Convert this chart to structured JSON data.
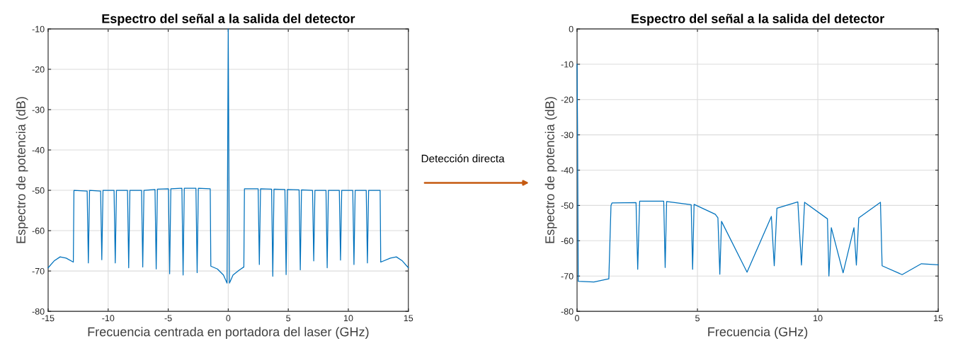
{
  "chart_data": [
    {
      "type": "line",
      "title": "Espectro del señal a la salida del detector",
      "xlabel": "Frecuencia centrada en portadora del laser (GHz)",
      "ylabel": "Espectro de potencia (dB)",
      "xlim": [
        -15,
        15
      ],
      "ylim": [
        -80,
        -10
      ],
      "xticks": [
        -15,
        -10,
        -5,
        0,
        5,
        10,
        15
      ],
      "yticks": [
        -80,
        -70,
        -60,
        -50,
        -40,
        -30,
        -20,
        -10
      ],
      "grid": true,
      "annotations": [
        "Detección directa"
      ],
      "series": [
        {
          "color": "#0072bd",
          "x": [
            -15,
            -14.5,
            -14,
            -13.5,
            -12.9,
            -12.85,
            -11.75,
            -11.65,
            -11.55,
            -10.63,
            -10.53,
            -10.43,
            -9.51,
            -9.41,
            -9.31,
            -8.39,
            -8.29,
            -8.19,
            -7.22,
            -7.12,
            -7.02,
            -6.1,
            -6.0,
            -5.9,
            -4.98,
            -4.88,
            -4.78,
            -3.86,
            -3.76,
            -3.66,
            -2.69,
            -2.59,
            -2.49,
            -1.5,
            -1.45,
            -0.9,
            -0.4,
            -0.1,
            0,
            0.1,
            0.4,
            0.9,
            1.3,
            1.35,
            2.49,
            2.59,
            2.69,
            3.61,
            3.71,
            3.81,
            4.72,
            4.82,
            4.92,
            5.9,
            6.0,
            6.1,
            7.02,
            7.12,
            7.22,
            8.14,
            8.24,
            8.34,
            9.25,
            9.35,
            9.45,
            10.37,
            10.47,
            10.57,
            11.49,
            11.59,
            11.69,
            12.65,
            12.7,
            13.5,
            14,
            14.5,
            15
          ],
          "values": [
            -69.2,
            -67.5,
            -66.5,
            -66.8,
            -67.8,
            -50,
            -50.2,
            -68,
            -50,
            -50.2,
            -67.2,
            -50,
            -50,
            -68,
            -50,
            -50,
            -69.2,
            -50,
            -50,
            -69,
            -50,
            -49.8,
            -69.5,
            -49.7,
            -49.6,
            -70.7,
            -49.6,
            -49.5,
            -71,
            -49.5,
            -49.5,
            -70.4,
            -49.5,
            -49.6,
            -68.8,
            -69.5,
            -71,
            -73,
            -10,
            -73,
            -71,
            -69.8,
            -69,
            -49.6,
            -49.6,
            -68.4,
            -49.6,
            -49.7,
            -71.3,
            -49.7,
            -49.8,
            -70.9,
            -49.8,
            -49.9,
            -69.7,
            -49.9,
            -50,
            -67.5,
            -50,
            -50,
            -69.2,
            -50,
            -50,
            -67.3,
            -50,
            -50,
            -68.4,
            -50,
            -50,
            -68,
            -50,
            -50,
            -67.8,
            -66.8,
            -66.5,
            -67.5,
            -69.2
          ]
        }
      ]
    },
    {
      "type": "line",
      "title": "Espectro del señal a la salida del detector",
      "xlabel": "Frecuencia (GHz)",
      "ylabel": "Espectro de potencia (dB)",
      "xlim": [
        0,
        15
      ],
      "ylim": [
        -80,
        0
      ],
      "xticks": [
        0,
        5,
        10,
        15
      ],
      "yticks": [
        -80,
        -70,
        -60,
        -50,
        -40,
        -30,
        -20,
        -10,
        0
      ],
      "grid": true,
      "series": [
        {
          "color": "#0072bd",
          "x": [
            0,
            0.02,
            0.05,
            0.7,
            1.32,
            1.41,
            1.45,
            2.45,
            2.52,
            2.6,
            3.6,
            3.66,
            3.72,
            4.74,
            4.8,
            4.86,
            5.74,
            5.85,
            5.93,
            6.0,
            7.06,
            8.07,
            8.19,
            8.3,
            9.17,
            9.32,
            9.45,
            10.4,
            10.46,
            10.56,
            11.05,
            11.5,
            11.6,
            11.7,
            12.6,
            12.67,
            13.5,
            14.3,
            15
          ],
          "values": [
            -10,
            -27,
            -71.5,
            -71.7,
            -70.8,
            -50,
            -49.3,
            -49.2,
            -68.1,
            -48.8,
            -48.8,
            -67.6,
            -48.9,
            -49.8,
            -68.1,
            -49.7,
            -52.5,
            -53.5,
            -69.5,
            -54.5,
            -68.9,
            -53.1,
            -67.1,
            -50.8,
            -49,
            -66.9,
            -49.1,
            -53.8,
            -70,
            -56.3,
            -69.1,
            -56.3,
            -66.9,
            -53.5,
            -49.1,
            -67.1,
            -69.6,
            -66.5,
            -66.8
          ]
        }
      ]
    }
  ]
}
